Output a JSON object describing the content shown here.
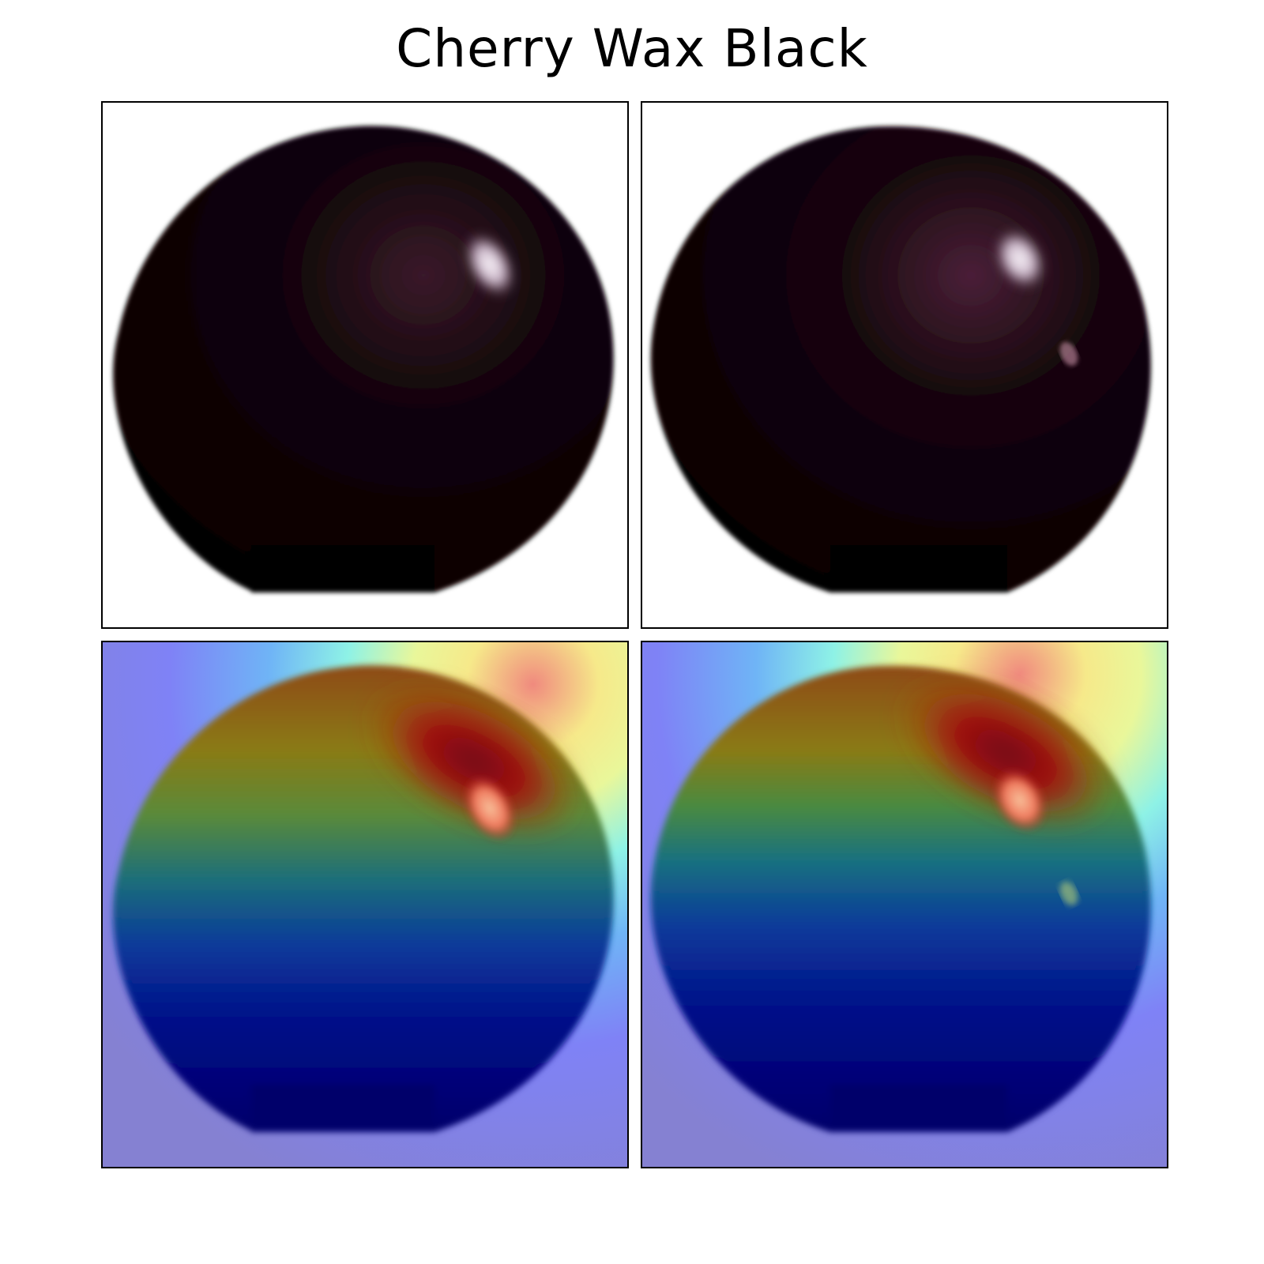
{
  "figure": {
    "title": "Cherry Wax Black"
  },
  "panels": [
    {
      "row": 0,
      "col": 0,
      "kind": "original-image",
      "subject": "black cherry tomato"
    },
    {
      "row": 0,
      "col": 1,
      "kind": "original-image",
      "subject": "black cherry tomato"
    },
    {
      "row": 1,
      "col": 0,
      "kind": "heatmap-overlay",
      "colormap": "jet"
    },
    {
      "row": 1,
      "col": 1,
      "kind": "heatmap-overlay",
      "colormap": "jet"
    }
  ],
  "colors": {
    "fruit_dark": "#0a0306",
    "fruit_rim": "#2a1420",
    "highlight": "#f2eef2",
    "heat_low": "#00007f",
    "heat_high": "#9e0a0a",
    "background_overlay": "#8585d6"
  }
}
